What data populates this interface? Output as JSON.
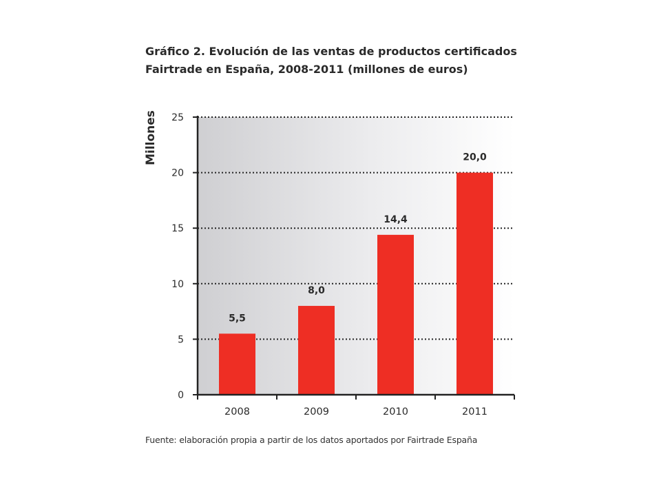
{
  "title_lines": [
    "Gráfico 2. Evolución de las ventas de productos certificados",
    "Fairtrade en España, 2008-2011 (millones de euros)"
  ],
  "source": "Fuente: elaboración propia a partir de los datos aportados por Fairtrade España",
  "colors": {
    "bar": "#ee2e24",
    "axis": "#222222",
    "grid": "#222222"
  },
  "chart_data": {
    "type": "bar",
    "title": "Gráfico 2. Evolución de las ventas de productos certificados Fairtrade en España, 2008-2011 (millones de euros)",
    "xlabel": "",
    "ylabel": "Millones",
    "categories": [
      "2008",
      "2009",
      "2010",
      "2011"
    ],
    "values": [
      5.5,
      8.0,
      14.4,
      20.0
    ],
    "value_labels": [
      "5,5",
      "8,0",
      "14,4",
      "20,0"
    ],
    "ylim": [
      0,
      25
    ],
    "yticks": [
      0,
      5,
      10,
      15,
      20,
      25
    ],
    "grid": true,
    "grid_style": "dotted",
    "background": "gradient gray",
    "legend": "none"
  }
}
